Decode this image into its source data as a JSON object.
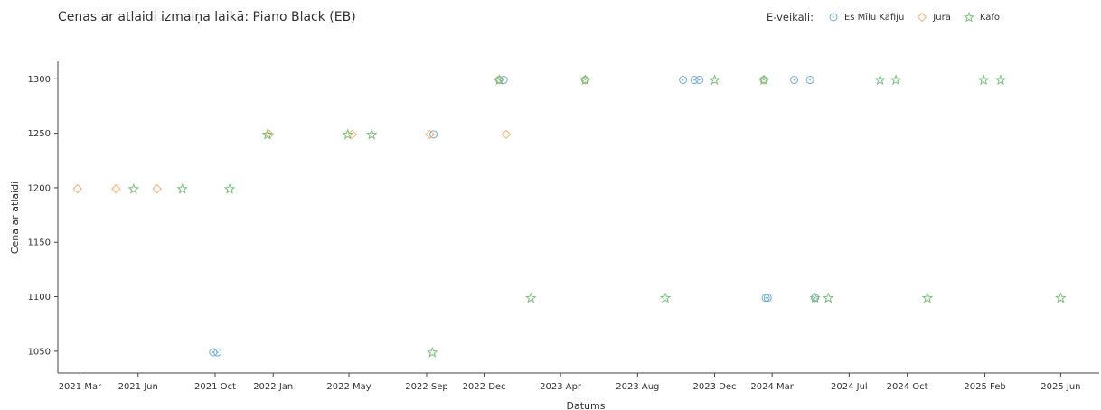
{
  "chart_data": {
    "type": "scatter",
    "title": "Cenas ar atlaidi izmaiņa laikā: Piano Black (EB)",
    "xlabel": "Datums",
    "ylabel": "Cena ar atlaidi",
    "legend_title": "E-veikali:",
    "legend_position": "top-right",
    "grid": false,
    "x_ticks": [
      "2021 Mar",
      "2021 Jun",
      "2021 Oct",
      "2022 Jan",
      "2022 May",
      "2022 Sep",
      "2022 Dec",
      "2023 Apr",
      "2023 Aug",
      "2023 Dec",
      "2024 Mar",
      "2024 Jul",
      "2024 Oct",
      "2025 Feb",
      "2025 Jun"
    ],
    "y_ticks": [
      1050,
      1100,
      1150,
      1200,
      1250,
      1300
    ],
    "xlim": [
      "2021-01-25",
      "2025-08-01"
    ],
    "ylim": [
      1030,
      1316
    ],
    "series": [
      {
        "name": "Es Mīlu Kafiju",
        "marker": "circle",
        "color": "#6baed6",
        "points": [
          {
            "x": "2021-09-28",
            "y": 1049
          },
          {
            "x": "2021-10-05",
            "y": 1049
          },
          {
            "x": "2022-09-12",
            "y": 1249
          },
          {
            "x": "2022-12-25",
            "y": 1299
          },
          {
            "x": "2023-01-01",
            "y": 1299
          },
          {
            "x": "2023-05-10",
            "y": 1299
          },
          {
            "x": "2023-10-12",
            "y": 1299
          },
          {
            "x": "2023-10-30",
            "y": 1299
          },
          {
            "x": "2023-11-07",
            "y": 1299
          },
          {
            "x": "2024-02-17",
            "y": 1299
          },
          {
            "x": "2024-02-20",
            "y": 1099
          },
          {
            "x": "2024-02-23",
            "y": 1099
          },
          {
            "x": "2024-04-05",
            "y": 1299
          },
          {
            "x": "2024-04-30",
            "y": 1299
          },
          {
            "x": "2024-05-08",
            "y": 1099
          }
        ]
      },
      {
        "name": "Jura",
        "marker": "diamond",
        "color": "#fdae6b",
        "points": [
          {
            "x": "2021-02-25",
            "y": 1199
          },
          {
            "x": "2021-04-27",
            "y": 1199
          },
          {
            "x": "2021-07-01",
            "y": 1199
          },
          {
            "x": "2021-12-26",
            "y": 1249
          },
          {
            "x": "2022-05-06",
            "y": 1249
          },
          {
            "x": "2022-09-06",
            "y": 1249
          },
          {
            "x": "2022-12-25",
            "y": 1299
          },
          {
            "x": "2023-01-05",
            "y": 1249
          },
          {
            "x": "2023-05-10",
            "y": 1299
          },
          {
            "x": "2024-02-17",
            "y": 1299
          }
        ]
      },
      {
        "name": "Kafo",
        "marker": "star",
        "color": "#74c476",
        "points": [
          {
            "x": "2021-05-25",
            "y": 1199
          },
          {
            "x": "2021-08-10",
            "y": 1199
          },
          {
            "x": "2021-10-24",
            "y": 1199
          },
          {
            "x": "2021-12-23",
            "y": 1249
          },
          {
            "x": "2022-04-29",
            "y": 1249
          },
          {
            "x": "2022-06-06",
            "y": 1249
          },
          {
            "x": "2022-09-10",
            "y": 1049
          },
          {
            "x": "2022-12-25",
            "y": 1299
          },
          {
            "x": "2023-02-13",
            "y": 1099
          },
          {
            "x": "2023-05-10",
            "y": 1299
          },
          {
            "x": "2023-09-14",
            "y": 1099
          },
          {
            "x": "2023-12-01",
            "y": 1299
          },
          {
            "x": "2024-02-17",
            "y": 1299
          },
          {
            "x": "2024-05-08",
            "y": 1099
          },
          {
            "x": "2024-05-29",
            "y": 1099
          },
          {
            "x": "2024-08-19",
            "y": 1299
          },
          {
            "x": "2024-09-13",
            "y": 1299
          },
          {
            "x": "2024-11-02",
            "y": 1099
          },
          {
            "x": "2025-01-30",
            "y": 1299
          },
          {
            "x": "2025-02-26",
            "y": 1299
          },
          {
            "x": "2025-06-01",
            "y": 1099
          }
        ]
      }
    ]
  }
}
